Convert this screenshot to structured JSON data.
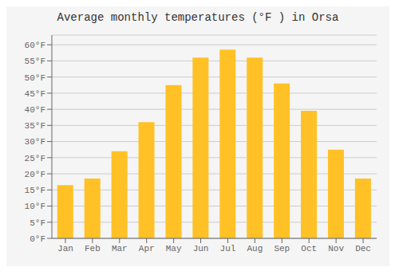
{
  "chart_data": {
    "type": "bar",
    "title": "Average monthly temperatures (°F ) in Orsa",
    "categories": [
      "Jan",
      "Feb",
      "Mar",
      "Apr",
      "May",
      "Jun",
      "Jul",
      "Aug",
      "Sep",
      "Oct",
      "Nov",
      "Dec"
    ],
    "values": [
      16.5,
      18.5,
      27.0,
      36.0,
      47.5,
      56.0,
      58.5,
      56.0,
      48.0,
      39.5,
      27.5,
      18.5
    ],
    "color": "#FFC125",
    "ylim": [
      0,
      63
    ],
    "yticks": [
      {
        "value": 0,
        "label": "0°F"
      },
      {
        "value": 5,
        "label": "5°F"
      },
      {
        "value": 10,
        "label": "10°F"
      },
      {
        "value": 15,
        "label": "15°F"
      },
      {
        "value": 20,
        "label": "20°F"
      },
      {
        "value": 25,
        "label": "25°F"
      },
      {
        "value": 30,
        "label": "30°F"
      },
      {
        "value": 35,
        "label": "35°F"
      },
      {
        "value": 40,
        "label": "40°F"
      },
      {
        "value": 45,
        "label": "45°F"
      },
      {
        "value": 50,
        "label": "50°F"
      },
      {
        "value": 55,
        "label": "55°F"
      },
      {
        "value": 60,
        "label": "60°F"
      }
    ],
    "grid": true
  }
}
